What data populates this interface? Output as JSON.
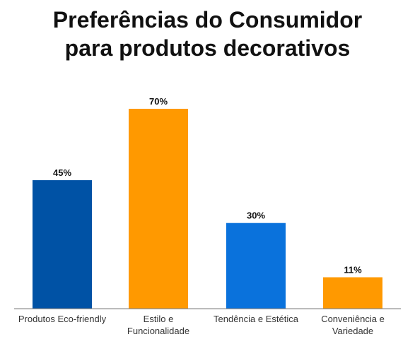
{
  "chart_data": {
    "type": "bar",
    "title_lines": [
      "Preferências do Consumidor",
      "para produtos decorativos"
    ],
    "categories": [
      [
        "Produtos Eco-friendly"
      ],
      [
        "Estilo e",
        "Funcionalidade"
      ],
      [
        "Tendência e Estética"
      ],
      [
        "Conveniência e",
        "Variedade"
      ]
    ],
    "values": [
      45,
      70,
      30,
      11
    ],
    "value_labels": [
      "45%",
      "70%",
      "30%",
      "11%"
    ],
    "colors": [
      "#0052a5",
      "#ff9900",
      "#0a72dc",
      "#ff9900"
    ],
    "ylim": [
      0,
      70
    ],
    "grid": false,
    "legend": "none"
  }
}
